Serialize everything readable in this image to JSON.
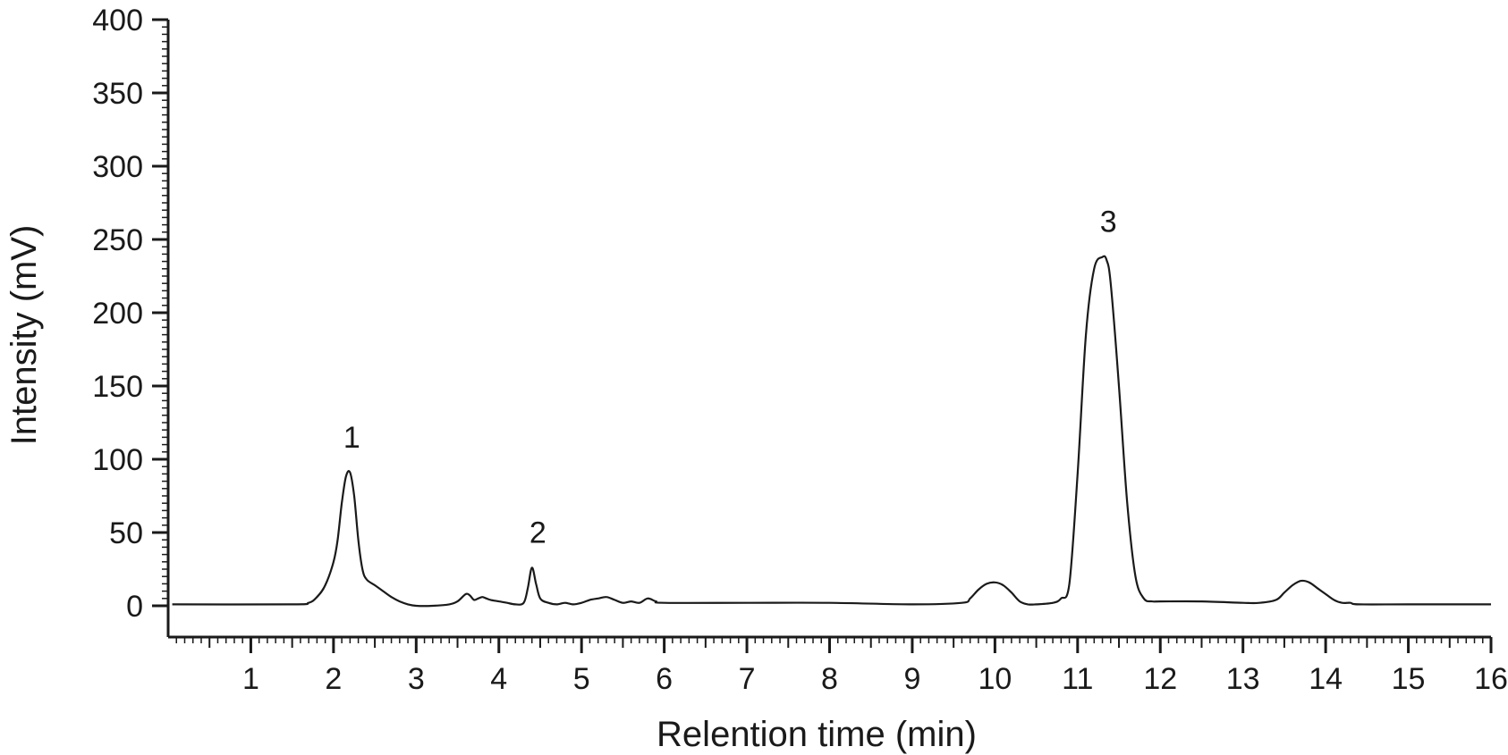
{
  "chart_data": {
    "type": "line",
    "xlabel": "Relention time (min)",
    "ylabel": "Intensity (mV)",
    "xlim": [
      0,
      16
    ],
    "ylim": [
      0,
      400
    ],
    "xticks": [
      1,
      2,
      3,
      4,
      5,
      6,
      7,
      8,
      9,
      10,
      11,
      12,
      13,
      14,
      15,
      16
    ],
    "xtick_labels": [
      "1",
      "2",
      "3",
      "4",
      "5",
      "6",
      "7",
      "8",
      "9",
      "10",
      "11",
      "12",
      "13",
      "14",
      "15",
      "16"
    ],
    "yticks": [
      0,
      50,
      100,
      150,
      200,
      250,
      300,
      350,
      400
    ],
    "ytick_labels": [
      "0",
      "50",
      "100",
      "150",
      "200",
      "250",
      "300",
      "350",
      "400"
    ],
    "grid": false,
    "line_color": "#1a1a1a",
    "series": [
      {
        "x": [
          0.05,
          1.5,
          1.7,
          1.8,
          1.9,
          2.0,
          2.05,
          2.1,
          2.15,
          2.2,
          2.25,
          2.3,
          2.35,
          2.4,
          2.5,
          2.6,
          2.7,
          2.8,
          2.9,
          3.0,
          3.2,
          3.4,
          3.5,
          3.6,
          3.65,
          3.7,
          3.75,
          3.8,
          3.85,
          3.9,
          4.0,
          4.1,
          4.2,
          4.3,
          4.35,
          4.4,
          4.45,
          4.5,
          4.6,
          4.7,
          4.8,
          4.9,
          5.0,
          5.1,
          5.2,
          5.3,
          5.4,
          5.5,
          5.6,
          5.7,
          5.8,
          5.9,
          6.0,
          7.0,
          8.0,
          9.0,
          9.6,
          9.7,
          9.8,
          9.9,
          10.0,
          10.1,
          10.2,
          10.3,
          10.4,
          10.5,
          10.7,
          10.8,
          10.9,
          11.0,
          11.1,
          11.2,
          11.3,
          11.35,
          11.4,
          11.5,
          11.6,
          11.7,
          11.8,
          11.9,
          12.0,
          12.5,
          13.0,
          13.2,
          13.4,
          13.5,
          13.6,
          13.7,
          13.8,
          13.9,
          14.0,
          14.1,
          14.2,
          14.3,
          14.4,
          15.0,
          16.0
        ],
        "y": [
          1,
          1,
          2,
          6,
          14,
          30,
          45,
          70,
          88,
          91,
          75,
          45,
          25,
          18,
          14,
          10,
          6,
          3,
          1,
          0,
          0,
          1,
          3,
          8,
          7,
          4,
          5,
          6,
          5,
          4,
          3,
          2,
          1,
          2,
          12,
          26,
          15,
          5,
          2,
          1,
          2,
          1,
          2,
          4,
          5,
          6,
          4,
          2,
          3,
          2,
          5,
          3,
          2,
          2,
          2,
          1,
          2,
          5,
          11,
          15,
          16,
          14,
          9,
          3,
          1,
          1,
          2,
          5,
          15,
          90,
          185,
          230,
          238,
          236,
          220,
          150,
          70,
          20,
          5,
          3,
          3,
          3,
          2,
          2,
          4,
          9,
          14,
          17,
          16,
          12,
          8,
          4,
          2,
          2,
          1,
          1,
          1
        ]
      }
    ],
    "annotations": [
      {
        "text": "1",
        "x": 2.2,
        "y": 91
      },
      {
        "text": "2",
        "x": 4.45,
        "y": 26
      },
      {
        "text": "3",
        "x": 11.35,
        "y": 238
      }
    ]
  }
}
